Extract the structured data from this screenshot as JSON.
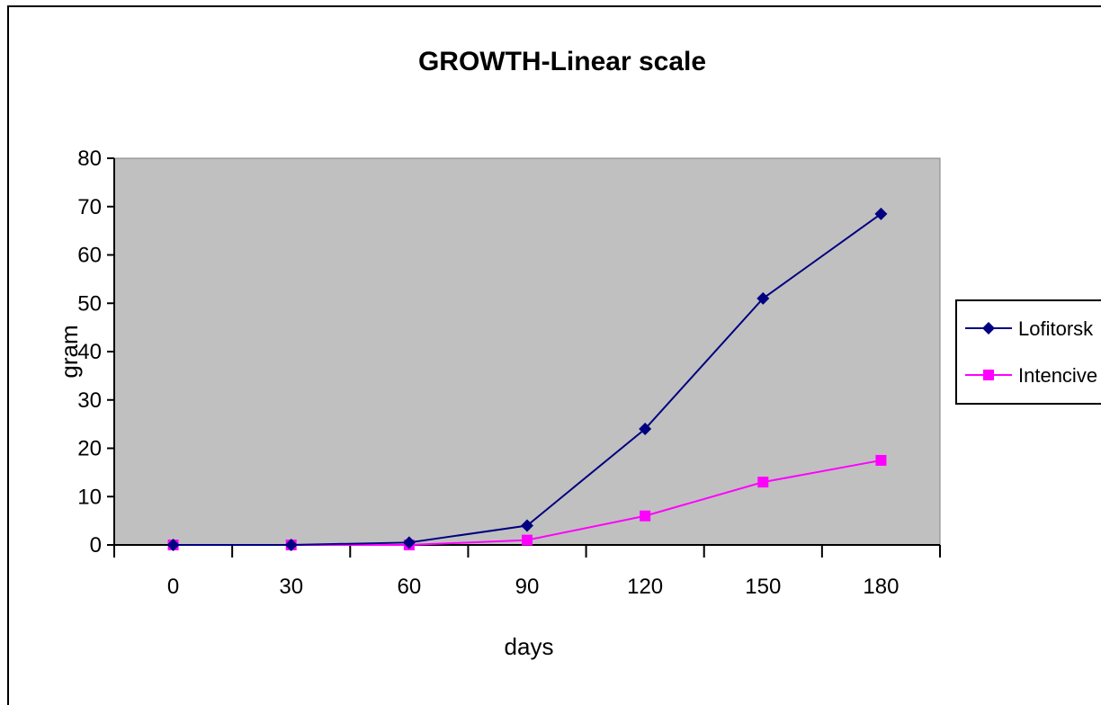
{
  "chart_data": {
    "type": "line",
    "title": "GROWTH-Linear scale",
    "xlabel": "days",
    "ylabel": "gram",
    "x": [
      0,
      30,
      60,
      90,
      120,
      150,
      180
    ],
    "ylim": [
      0,
      80
    ],
    "yticks": [
      0,
      10,
      20,
      30,
      40,
      50,
      60,
      70,
      80
    ],
    "plot_background": "#c0c0c0",
    "legend_position": "right",
    "series": [
      {
        "name": "Lofitorsk",
        "color": "#000080",
        "marker": "diamond",
        "values": [
          0,
          0,
          0.5,
          4,
          24,
          51,
          68.5
        ]
      },
      {
        "name": "Intencive",
        "color": "#ff00ff",
        "marker": "square",
        "values": [
          0,
          0,
          0,
          1,
          6,
          13,
          17.5
        ]
      }
    ]
  }
}
